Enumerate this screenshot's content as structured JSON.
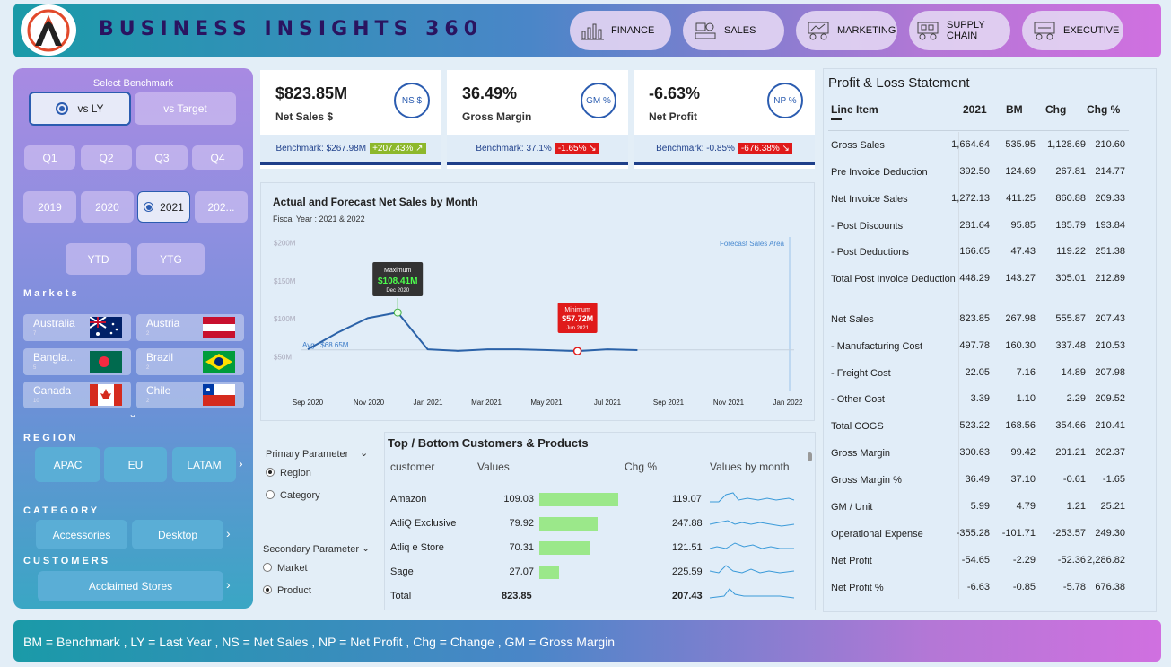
{
  "header": {
    "title": "BUSINESS INSIGHTS 360",
    "nav": [
      "FINANCE",
      "SALES",
      "MARKETING",
      "SUPPLY CHAIN",
      "EXECUTIVE"
    ]
  },
  "filters": {
    "benchmark_label": "Select Benchmark",
    "benchmark_options": [
      "vs LY",
      "vs Target"
    ],
    "benchmark_selected": "vs LY",
    "quarters": [
      "Q1",
      "Q2",
      "Q3",
      "Q4"
    ],
    "years": [
      "2019",
      "2020",
      "2021",
      "202..."
    ],
    "year_selected": "2021",
    "periods": [
      "YTD",
      "YTG"
    ],
    "markets_label": "Markets",
    "markets": [
      {
        "name": "Australia",
        "count": "7"
      },
      {
        "name": "Austria",
        "count": "2"
      },
      {
        "name": "Bangla...",
        "count": "5"
      },
      {
        "name": "Brazil",
        "count": "2"
      },
      {
        "name": "Canada",
        "count": "10"
      },
      {
        "name": "Chile",
        "count": "2"
      }
    ],
    "region_label": "REGION",
    "regions": [
      "APAC",
      "EU",
      "LATAM"
    ],
    "category_label": "CATEGORY",
    "categories": [
      "Accessories",
      "Desktop"
    ],
    "customers_label": "CUSTOMERS",
    "customers": [
      "Acclaimed Stores"
    ]
  },
  "kpis": [
    {
      "value": "$823.85M",
      "label": "Net Sales $",
      "badge": "NS $",
      "benchmark": "Benchmark: $267.98M",
      "change": "+207.43% ↗",
      "change_color": "#8db82c"
    },
    {
      "value": "36.49%",
      "label": "Gross Margin",
      "badge": "GM %",
      "benchmark": "Benchmark: 37.1%",
      "change": "-1.65% ↘",
      "change_color": "#e01a1a"
    },
    {
      "value": "-6.63%",
      "label": "Net Profit",
      "badge": "NP %",
      "benchmark": "Benchmark: -0.85%",
      "change": "-676.38% ↘",
      "change_color": "#e01a1a"
    }
  ],
  "chart": {
    "title": "Actual and Forecast Net Sales by Month",
    "subtitle": "Fiscal Year : 2021 & 2022",
    "forecast_label": "Forecast Sales Area",
    "avg_label": "Avg.: $68.65M",
    "max_label": "Maximum",
    "max_value": "$108.41M",
    "max_month": "Dec 2020",
    "min_label": "Minimum",
    "min_value": "$57.72M",
    "min_month": "Jun 2021"
  },
  "chart_data": {
    "type": "line",
    "title": "Actual and Forecast Net Sales by Month",
    "subtitle": "Fiscal Year : 2021 & 2022",
    "x_ticks": [
      "Sep 2020",
      "Nov 2020",
      "Jan 2021",
      "Mar 2021",
      "May 2021",
      "Jul 2021",
      "Sep 2021",
      "Nov 2021",
      "Jan 2022"
    ],
    "y_ticks": [
      "$50M",
      "$100M",
      "$150M",
      "$200M"
    ],
    "ylim": [
      0,
      210
    ],
    "x": [
      "Sep 2020",
      "Oct 2020",
      "Nov 2020",
      "Dec 2020",
      "Jan 2021",
      "Feb 2021",
      "Mar 2021",
      "Apr 2021",
      "May 2021",
      "Jun 2021",
      "Jul 2021",
      "Aug 2021"
    ],
    "series": [
      {
        "values": [
          60,
          82,
          101,
          108.41,
          60,
          58,
          60,
          60,
          59,
          57.72,
          60,
          59
        ]
      }
    ],
    "average": 68.65,
    "forecast_start": "Jan 2022"
  },
  "params": {
    "primary_label": "Primary Parameter",
    "primary_options": [
      "Region",
      "Category"
    ],
    "primary_selected": "Region",
    "secondary_label": "Secondary Parameter",
    "secondary_options": [
      "Market",
      "Product"
    ],
    "secondary_selected": "Product"
  },
  "top_bottom": {
    "title": "Top / Bottom Customers & Products",
    "headers": [
      "customer",
      "Values",
      "Chg %",
      "Values by month"
    ],
    "rows": [
      {
        "name": "Amazon",
        "value": "109.03",
        "chg": "119.07",
        "bar": 109.03
      },
      {
        "name": "AtliQ Exclusive",
        "value": "79.92",
        "chg": "247.88",
        "bar": 79.92
      },
      {
        "name": "Atliq e Store",
        "value": "70.31",
        "chg": "121.51",
        "bar": 70.31
      },
      {
        "name": "Sage",
        "value": "27.07",
        "chg": "225.59",
        "bar": 27.07
      }
    ],
    "total_label": "Total",
    "total_value": "823.85",
    "total_chg": "207.43"
  },
  "pnl": {
    "title": "Profit & Loss Statement",
    "headers": [
      "Line Item",
      "2021",
      "BM",
      "Chg",
      "Chg %"
    ],
    "rows": [
      {
        "item": "Gross Sales",
        "v": "1,664.64",
        "bm": "535.95",
        "chg": "1,128.69",
        "pct": "210.60"
      },
      {
        "item": "Pre Invoice Deduction",
        "v": "392.50",
        "bm": "124.69",
        "chg": "267.81",
        "pct": "214.77"
      },
      {
        "item": "Net Invoice Sales",
        "v": "1,272.13",
        "bm": "411.25",
        "chg": "860.88",
        "pct": "209.33"
      },
      {
        "item": " - Post Discounts",
        "v": "281.64",
        "bm": "95.85",
        "chg": "185.79",
        "pct": "193.84"
      },
      {
        "item": " - Post Deductions",
        "v": "166.65",
        "bm": "47.43",
        "chg": "119.22",
        "pct": "251.38"
      },
      {
        "item": "Total Post Invoice Deduction",
        "v": "448.29",
        "bm": "143.27",
        "chg": "305.01",
        "pct": "212.89"
      },
      {
        "item": "Net Sales",
        "v": "823.85",
        "bm": "267.98",
        "chg": "555.87",
        "pct": "207.43"
      },
      {
        "item": " - Manufacturing Cost",
        "v": "497.78",
        "bm": "160.30",
        "chg": "337.48",
        "pct": "210.53"
      },
      {
        "item": " - Freight Cost",
        "v": "22.05",
        "bm": "7.16",
        "chg": "14.89",
        "pct": "207.98"
      },
      {
        "item": " - Other Cost",
        "v": "3.39",
        "bm": "1.10",
        "chg": "2.29",
        "pct": "209.52"
      },
      {
        "item": "Total COGS",
        "v": "523.22",
        "bm": "168.56",
        "chg": "354.66",
        "pct": "210.41"
      },
      {
        "item": "Gross Margin",
        "v": "300.63",
        "bm": "99.42",
        "chg": "201.21",
        "pct": "202.37"
      },
      {
        "item": "Gross Margin %",
        "v": "36.49",
        "bm": "37.10",
        "chg": "-0.61",
        "pct": "-1.65"
      },
      {
        "item": "GM / Unit",
        "v": "5.99",
        "bm": "4.79",
        "chg": "1.21",
        "pct": "25.21"
      },
      {
        "item": "Operational Expense",
        "v": "-355.28",
        "bm": "-101.71",
        "chg": "-253.57",
        "pct": "249.30"
      },
      {
        "item": "Net Profit",
        "v": "-54.65",
        "bm": "-2.29",
        "chg": "-52.36",
        "pct": "2,286.82"
      },
      {
        "item": "Net Profit %",
        "v": "-6.63",
        "bm": "-0.85",
        "chg": "-5.78",
        "pct": "676.38"
      }
    ]
  },
  "footer": {
    "text": "BM = Benchmark , LY = Last Year , NS = Net Sales , NP = Net Profit , Chg = Change , GM = Gross Margin"
  }
}
